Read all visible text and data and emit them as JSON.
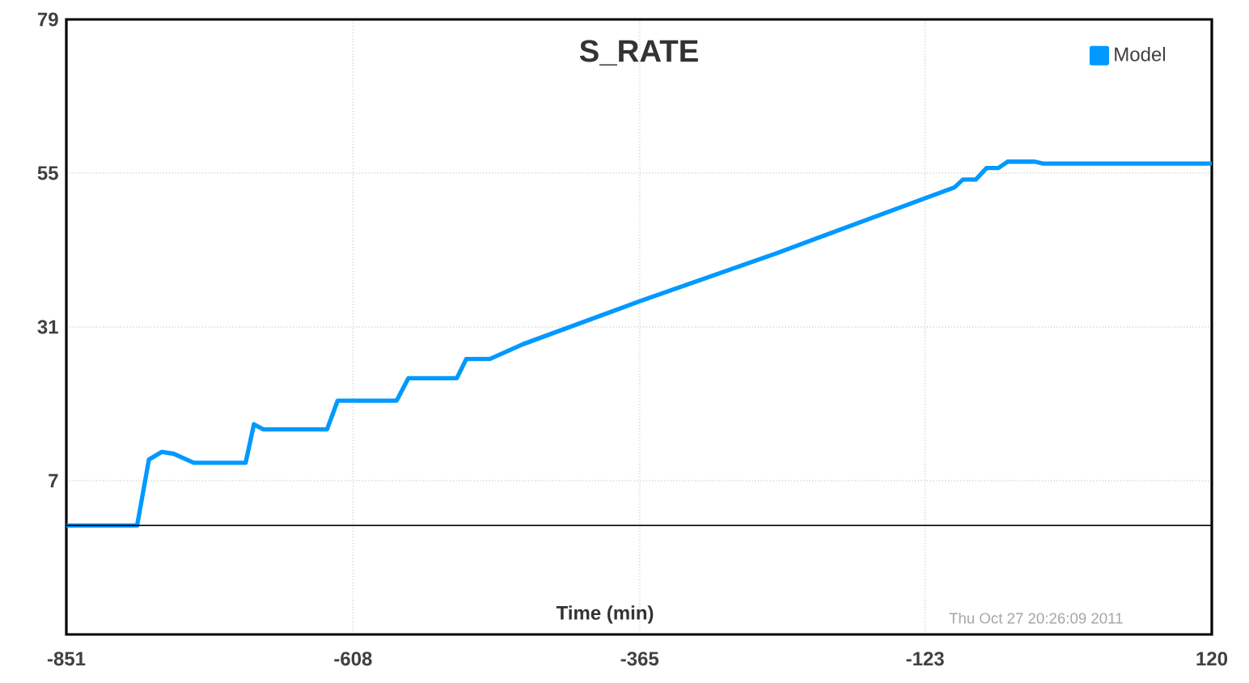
{
  "chart_data": {
    "type": "line",
    "title": "S_RATE",
    "xlabel": "Time (min)",
    "annotations": [
      "Thu Oct 27 20:26:09 2011"
    ],
    "x": [
      -851,
      -791,
      -781,
      -770,
      -760,
      -743,
      -699,
      -692,
      -684,
      -630,
      -621,
      -571,
      -561,
      -520,
      -512,
      -492,
      -464,
      -365,
      -249,
      -98,
      -91,
      -80,
      -71,
      -61,
      -53,
      -30,
      -23,
      120
    ],
    "series": [
      {
        "name": "Model",
        "color": "#0099ff",
        "values": [
          0,
          0,
          10.3,
          11.5,
          11.2,
          9.8,
          9.8,
          15.8,
          15,
          15,
          19.5,
          19.5,
          23,
          23,
          26,
          26,
          28.3,
          35,
          42.5,
          52.8,
          54,
          54,
          55.8,
          55.8,
          56.8,
          56.8,
          56.5,
          56.5
        ]
      }
    ],
    "xlim": [
      -851,
      120
    ],
    "ylim": [
      -17,
      79
    ],
    "xticks": [
      -851,
      -608,
      -365,
      -123,
      120
    ],
    "yticks": [
      7,
      31,
      55,
      79
    ],
    "ref_lines": [
      {
        "axis": "y",
        "value": 0,
        "color": "#000000"
      }
    ],
    "grid": true,
    "legend": "top right",
    "line_style": "solid"
  }
}
